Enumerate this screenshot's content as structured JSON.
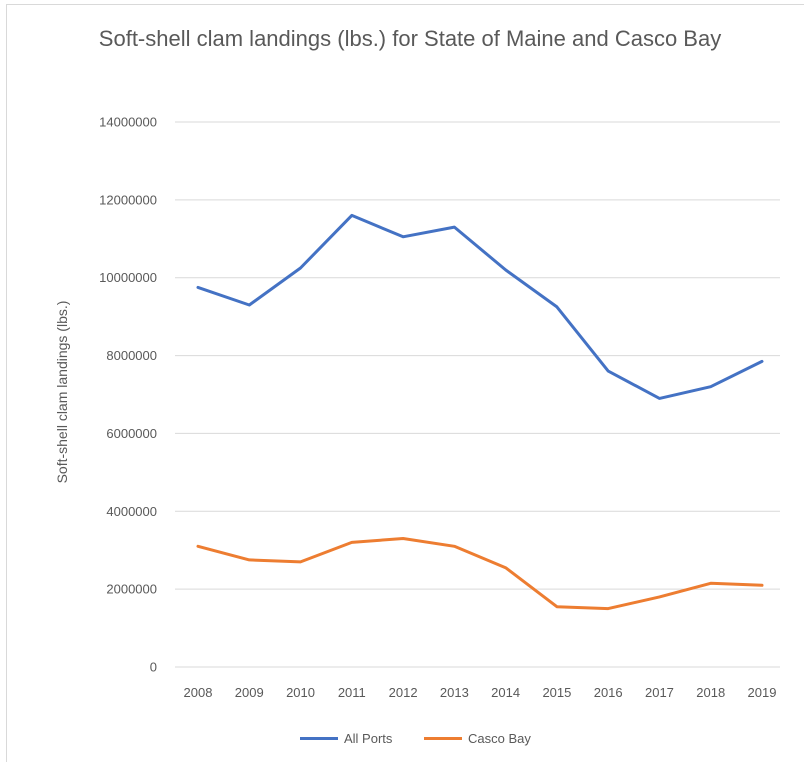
{
  "chart_data": {
    "type": "line",
    "title": "Soft-shell clam landings (lbs.) for State of Maine and Casco Bay",
    "xlabel": "",
    "ylabel": "Soft-shell clam landings (lbs.)",
    "categories": [
      "2008",
      "2009",
      "2010",
      "2011",
      "2012",
      "2013",
      "2014",
      "2015",
      "2016",
      "2017",
      "2018",
      "2019"
    ],
    "ylim": [
      0,
      14000000
    ],
    "yticks": [
      "0",
      "2000000",
      "4000000",
      "6000000",
      "8000000",
      "10000000",
      "12000000",
      "14000000"
    ],
    "grid": true,
    "legend_position": "bottom",
    "series": [
      {
        "name": "All Ports",
        "color": "#4472c4",
        "values": [
          9750000,
          9300000,
          10250000,
          11600000,
          11050000,
          11300000,
          10200000,
          9250000,
          7600000,
          6900000,
          7200000,
          7850000
        ]
      },
      {
        "name": "Casco Bay",
        "color": "#ed7d31",
        "values": [
          3100000,
          2750000,
          2700000,
          3200000,
          3300000,
          3100000,
          2550000,
          1550000,
          1500000,
          1800000,
          2150000,
          2100000
        ]
      }
    ]
  }
}
